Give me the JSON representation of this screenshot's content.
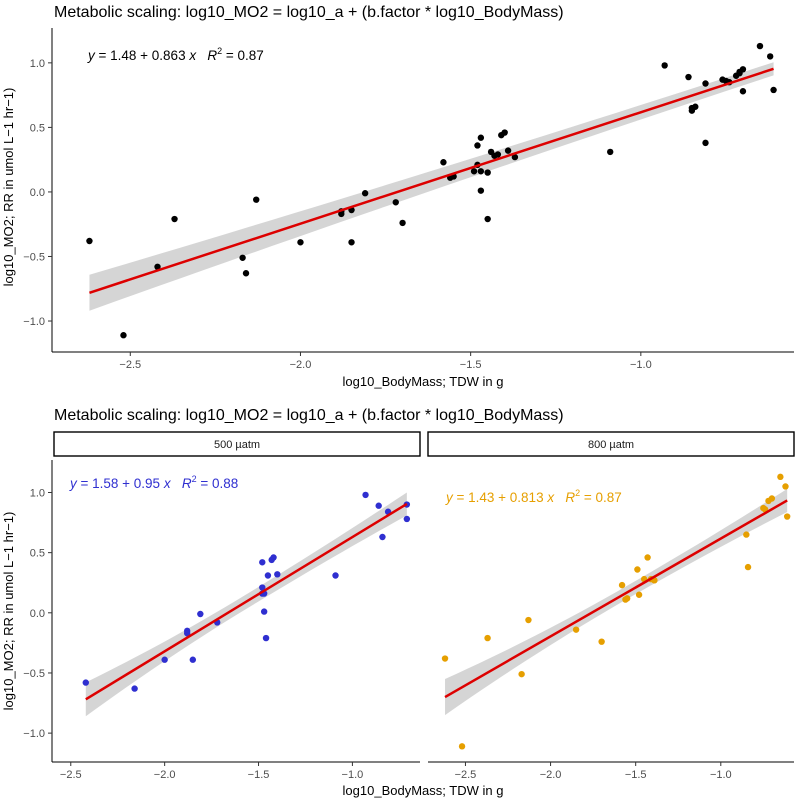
{
  "chart_data": [
    {
      "type": "scatter",
      "title": "Metabolic scaling: log10_MO2 = log10_a + (b.factor * log10_BodyMass)",
      "xlabel": "log10_BodyMass; TDW in g",
      "ylabel": "log10_MO2; RR in umol L−1 hr−1)",
      "xlim": [
        -2.73,
        -0.55
      ],
      "ylim": [
        -1.24,
        1.27
      ],
      "xticks": [
        -2.5,
        -2.0,
        -1.5,
        -1.0
      ],
      "xtick_labels": [
        "−2.5",
        "−2.0",
        "−1.5",
        "−1.0"
      ],
      "yticks": [
        -1.0,
        -0.5,
        0.0,
        0.5,
        1.0
      ],
      "ytick_labels": [
        "−1.0",
        "−0.5",
        "0.0",
        "0.5",
        "1.0"
      ],
      "grid": false,
      "annotation": {
        "eq_y": "y",
        "eq_rest": " = 1.48 + 0.863 ",
        "eq_x": "x",
        "r2_label": "R",
        "r2_sup": "2",
        "r2_rest": " = 0.87",
        "color": "#000000"
      },
      "series": [
        {
          "color": "#000000",
          "x": [
            -2.62,
            -2.52,
            -2.42,
            -2.37,
            -2.17,
            -2.16,
            -2.13,
            -2.0,
            -1.88,
            -1.88,
            -1.85,
            -1.85,
            -1.81,
            -1.72,
            -1.7,
            -1.58,
            -1.56,
            -1.55,
            -1.49,
            -1.48,
            -1.48,
            -1.47,
            -1.47,
            -1.47,
            -1.45,
            -1.45,
            -1.44,
            -1.43,
            -1.42,
            -1.41,
            -1.4,
            -1.39,
            -1.37,
            -1.09,
            -0.93,
            -0.86,
            -0.85,
            -0.85,
            -0.84,
            -0.81,
            -0.81,
            -0.76,
            -0.75,
            -0.74,
            -0.72,
            -0.71,
            -0.71,
            -0.7,
            -0.7,
            -0.65,
            -0.62,
            -0.61
          ],
          "y": [
            -0.38,
            -1.11,
            -0.58,
            -0.21,
            -0.51,
            -0.63,
            -0.06,
            -0.39,
            -0.15,
            -0.17,
            -0.14,
            -0.39,
            -0.01,
            -0.08,
            -0.24,
            0.23,
            0.11,
            0.12,
            0.16,
            0.21,
            0.36,
            0.42,
            0.16,
            0.01,
            0.15,
            -0.21,
            0.31,
            0.28,
            0.29,
            0.44,
            0.46,
            0.32,
            0.27,
            0.31,
            0.98,
            0.89,
            0.63,
            0.65,
            0.66,
            0.38,
            0.84,
            0.87,
            0.86,
            0.85,
            0.9,
            0.93,
            0.92,
            0.95,
            0.78,
            1.13,
            1.05,
            0.79
          ]
        }
      ],
      "fit": {
        "color": "#dd0000",
        "x": [
          -2.62,
          -0.61
        ],
        "y": [
          -0.781,
          0.954
        ],
        "ci_lower": [
          -0.92,
          0.86
        ],
        "ci_upper": [
          -0.64,
          1.05
        ],
        "ci_mid": [
          -0.42,
          0.6
        ],
        "ci_mid_half": 0.05
      }
    },
    {
      "type": "scatter",
      "title": "Metabolic scaling: log10_MO2 = log10_a + (b.factor * log10_BodyMass)",
      "xlabel": "log10_BodyMass; TDW in g",
      "ylabel": "log10_MO2; RR in umol L−1 hr−1)",
      "facets": [
        "500 µatm",
        "800 µatm"
      ],
      "ylim": [
        -1.24,
        1.27
      ],
      "yticks": [
        -1.0,
        -0.5,
        0.0,
        0.5,
        1.0
      ],
      "ytick_labels": [
        "−1.0",
        "−0.5",
        "0.0",
        "0.5",
        "1.0"
      ],
      "grid": false,
      "panels": [
        {
          "strip": "500 µatm",
          "xlim": [
            -2.6,
            -0.64
          ],
          "xticks": [
            -2.5,
            -2.0,
            -1.5,
            -1.0
          ],
          "xtick_labels": [
            "−2.5",
            "−2.0",
            "−1.5",
            "−1.0"
          ],
          "annotation": {
            "eq_y": "y",
            "eq_rest": " = 1.58 + 0.95 ",
            "eq_x": "x",
            "r2_label": "R",
            "r2_sup": "2",
            "r2_rest": " = 0.88",
            "color": "#2f2fd0"
          },
          "color": "#2f2fd0",
          "x": [
            -2.42,
            -2.16,
            -2.0,
            -1.88,
            -1.88,
            -1.85,
            -1.81,
            -1.72,
            -1.48,
            -1.48,
            -1.48,
            -1.47,
            -1.47,
            -1.46,
            -1.45,
            -1.43,
            -1.42,
            -1.4,
            -1.09,
            -0.93,
            -0.86,
            -0.84,
            -0.81,
            -0.71,
            -0.71
          ],
          "y": [
            -0.58,
            -0.63,
            -0.39,
            -0.15,
            -0.17,
            -0.39,
            -0.01,
            -0.08,
            0.16,
            0.21,
            0.42,
            0.01,
            0.16,
            -0.21,
            0.31,
            0.44,
            0.46,
            0.32,
            0.31,
            0.98,
            0.89,
            0.63,
            0.84,
            0.9,
            0.78
          ],
          "fit": {
            "color": "#dd0000",
            "x": [
              -2.42,
              -0.71
            ],
            "y": [
              -0.719,
              0.905
            ],
            "ci_lower": [
              -0.86,
              0.82
            ],
            "ci_upper": [
              -0.58,
              1.0
            ],
            "ci_mid": [
              -1.56,
              0.1
            ],
            "ci_mid_half": 0.06
          }
        },
        {
          "strip": "800 µatm",
          "xlim": [
            -2.72,
            -0.57
          ],
          "xticks": [
            -2.5,
            -2.0,
            -1.5,
            -1.0
          ],
          "xtick_labels": [
            "−2.5",
            "−2.0",
            "−1.5",
            "−1.0"
          ],
          "annotation": {
            "eq_y": "y",
            "eq_rest": " = 1.43 + 0.813 ",
            "eq_x": "x",
            "r2_label": "R",
            "r2_sup": "2",
            "r2_rest": " = 0.87",
            "color": "#e69f00"
          },
          "color": "#e69f00",
          "x": [
            -2.62,
            -2.52,
            -2.37,
            -2.17,
            -2.13,
            -1.85,
            -1.7,
            -1.58,
            -1.56,
            -1.55,
            -1.49,
            -1.48,
            -1.45,
            -1.43,
            -1.41,
            -1.39,
            -0.85,
            -0.84,
            -0.75,
            -0.74,
            -0.72,
            -0.7,
            -0.65,
            -0.62,
            -0.61
          ],
          "y": [
            -0.38,
            -1.11,
            -0.21,
            -0.51,
            -0.06,
            -0.14,
            -0.24,
            0.23,
            0.11,
            0.12,
            0.36,
            0.15,
            0.28,
            0.46,
            0.28,
            0.27,
            0.65,
            0.38,
            0.87,
            0.86,
            0.93,
            0.95,
            1.13,
            1.05,
            0.8
          ],
          "fit": {
            "color": "#dd0000",
            "x": [
              -2.62,
              -0.61
            ],
            "y": [
              -0.7,
              0.934
            ],
            "ci_lower": [
              -0.85,
              0.84
            ],
            "ci_upper": [
              -0.55,
              1.03
            ],
            "ci_mid": [
              -1.55,
              0.17
            ],
            "ci_mid_half": 0.055
          }
        }
      ]
    }
  ]
}
